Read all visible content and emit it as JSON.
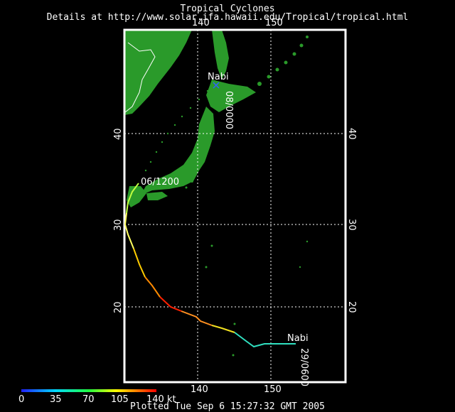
{
  "header": {
    "title": "Tropical Cyclones",
    "subtitle": "Details at http://www.solar.ifa.hawaii.edu/Tropical/tropical.html"
  },
  "footer": {
    "plotted": "Plotted Tue Sep 6 15:27:32 GMT 2005"
  },
  "map": {
    "lon_labels_top": [
      "140",
      "150"
    ],
    "lon_labels_bottom": [
      "140",
      "150"
    ],
    "lat_labels_left": [
      "40",
      "30",
      "20"
    ],
    "lat_labels_right": [
      "40",
      "30",
      "20"
    ],
    "land_color": "#2a9a2a",
    "grid": "dotted white"
  },
  "storm": {
    "name_start": "Nabi",
    "name_end": "Nabi",
    "time_start": "29/0600",
    "time_mid": "06/1200",
    "time_end": "08/0000"
  },
  "legend": {
    "labels": [
      "0",
      "35",
      "70",
      "105",
      "140 kt"
    ],
    "colors": [
      "#0000ff",
      "#00e0ff",
      "#00ff40",
      "#ffff00",
      "#ff8000",
      "#ff0000"
    ]
  }
}
